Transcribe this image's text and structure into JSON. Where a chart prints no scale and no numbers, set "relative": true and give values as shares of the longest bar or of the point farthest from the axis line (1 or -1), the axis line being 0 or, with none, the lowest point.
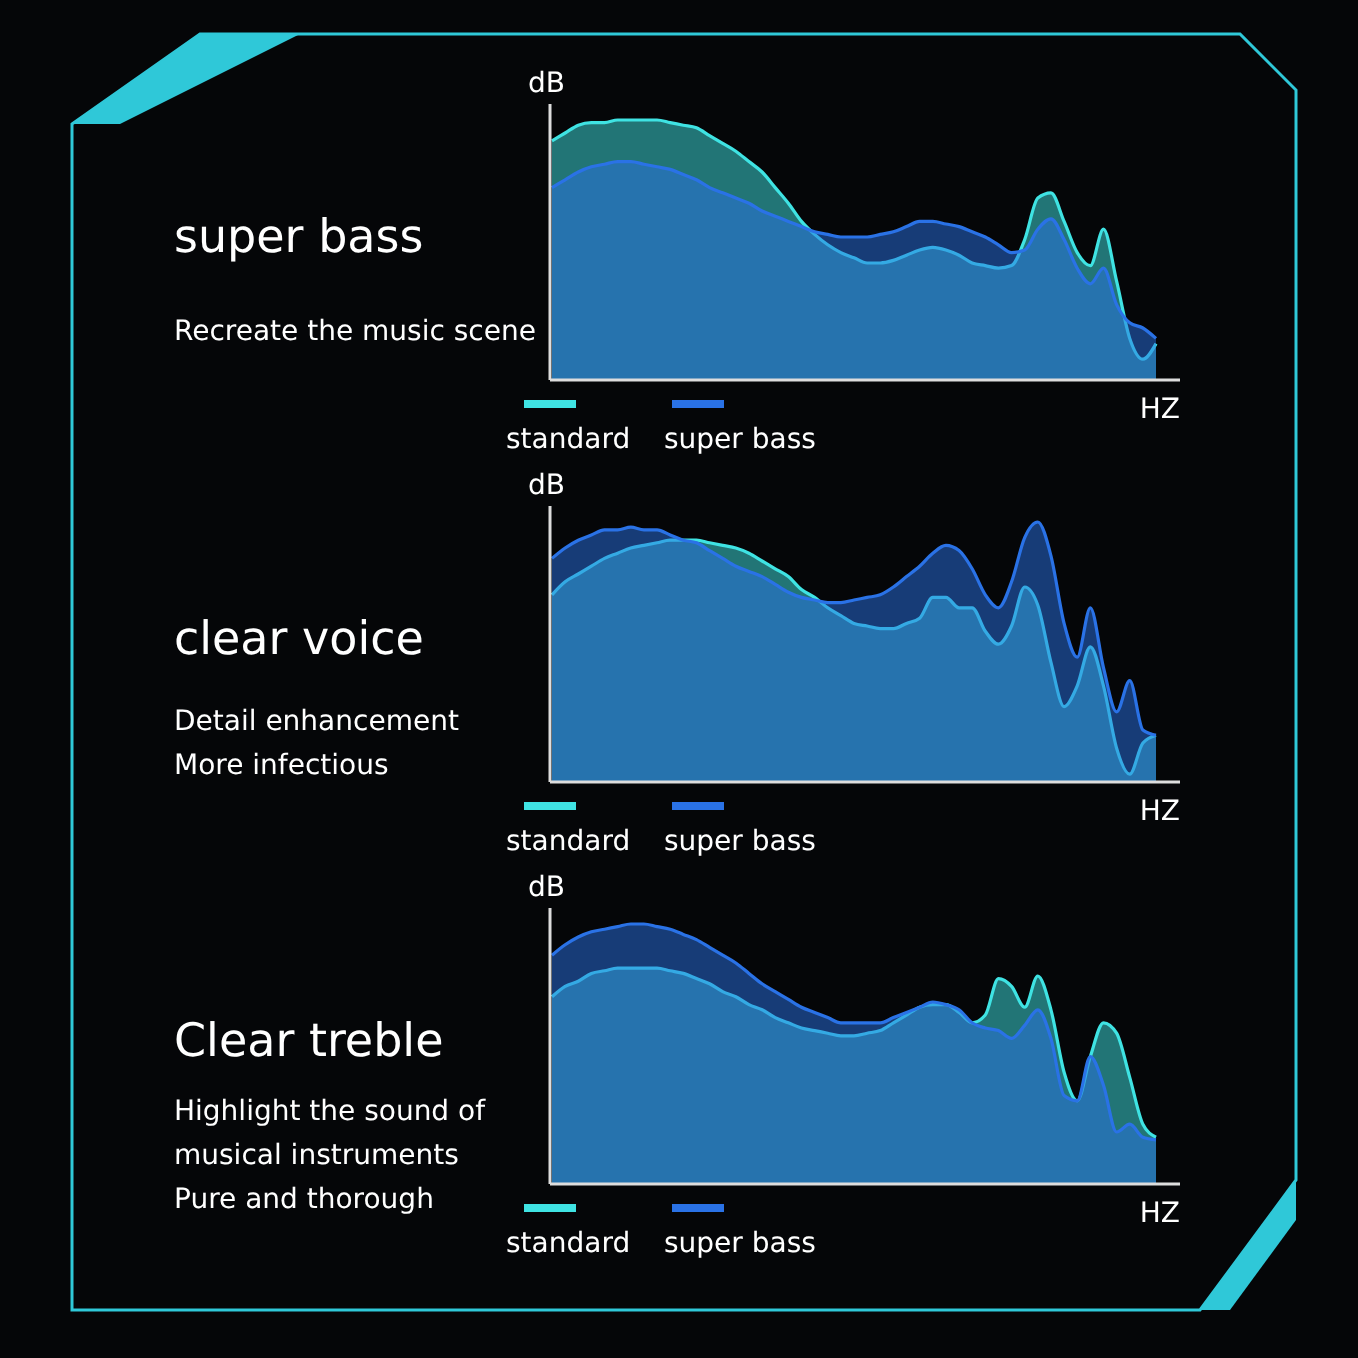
{
  "chart_data": [
    {
      "type": "area",
      "title": "super bass",
      "subtitle": "Recreate the music scene",
      "ylabel": "dB",
      "xlabel": "HZ",
      "relative": true,
      "legend": "bottom",
      "categories": [
        null,
        null,
        null,
        null,
        null,
        null,
        null,
        null,
        null,
        null,
        null,
        null,
        null,
        null,
        null,
        null,
        null,
        null,
        null,
        null,
        null,
        null,
        null,
        null,
        null,
        null,
        null,
        null,
        null,
        null,
        null,
        null,
        null,
        null,
        null,
        null,
        null,
        null,
        null,
        null,
        null,
        null,
        null,
        null,
        null,
        null,
        null
      ],
      "series": [
        {
          "name": "standard",
          "color": "#3fe3e3",
          "values": [
            0.92,
            0.95,
            0.98,
            0.99,
            0.99,
            1.0,
            1.0,
            1.0,
            1.0,
            0.99,
            0.98,
            0.97,
            0.94,
            0.91,
            0.88,
            0.84,
            0.8,
            0.74,
            0.68,
            0.61,
            0.56,
            0.52,
            0.49,
            0.47,
            0.45,
            0.45,
            0.46,
            0.48,
            0.5,
            0.51,
            0.5,
            0.48,
            0.45,
            0.44,
            0.43,
            0.44,
            0.54,
            0.7,
            0.72,
            0.61,
            0.49,
            0.44,
            0.58,
            0.38,
            0.16,
            0.08,
            0.14
          ]
        },
        {
          "name": "super bass",
          "color": "#2a72e6",
          "values": [
            0.74,
            0.77,
            0.8,
            0.82,
            0.83,
            0.84,
            0.84,
            0.83,
            0.82,
            0.81,
            0.79,
            0.77,
            0.74,
            0.72,
            0.7,
            0.68,
            0.65,
            0.63,
            0.61,
            0.59,
            0.57,
            0.56,
            0.55,
            0.55,
            0.55,
            0.56,
            0.57,
            0.59,
            0.61,
            0.61,
            0.6,
            0.59,
            0.57,
            0.55,
            0.52,
            0.49,
            0.5,
            0.58,
            0.62,
            0.54,
            0.43,
            0.37,
            0.43,
            0.29,
            0.22,
            0.2,
            0.16
          ]
        }
      ]
    },
    {
      "type": "area",
      "title": "clear voice",
      "subtitle": "Detail enhancement\nMore infectious",
      "ylabel": "dB",
      "xlabel": "HZ",
      "relative": true,
      "legend": "bottom",
      "categories": [
        null,
        null,
        null,
        null,
        null,
        null,
        null,
        null,
        null,
        null,
        null,
        null,
        null,
        null,
        null,
        null,
        null,
        null,
        null,
        null,
        null,
        null,
        null,
        null,
        null,
        null,
        null,
        null,
        null,
        null,
        null,
        null,
        null,
        null,
        null,
        null,
        null,
        null,
        null,
        null,
        null,
        null,
        null,
        null,
        null,
        null,
        null
      ],
      "series": [
        {
          "name": "standard",
          "color": "#3fe3e3",
          "values": [
            0.72,
            0.77,
            0.8,
            0.83,
            0.86,
            0.88,
            0.9,
            0.91,
            0.92,
            0.93,
            0.93,
            0.93,
            0.92,
            0.91,
            0.9,
            0.88,
            0.85,
            0.82,
            0.79,
            0.74,
            0.71,
            0.67,
            0.64,
            0.61,
            0.6,
            0.59,
            0.59,
            0.61,
            0.63,
            0.71,
            0.71,
            0.67,
            0.67,
            0.58,
            0.53,
            0.6,
            0.75,
            0.68,
            0.46,
            0.29,
            0.37,
            0.52,
            0.37,
            0.13,
            0.03,
            0.15,
            0.18
          ]
        },
        {
          "name": "super bass",
          "color": "#2a72e6",
          "values": [
            0.86,
            0.9,
            0.93,
            0.95,
            0.97,
            0.97,
            0.98,
            0.97,
            0.97,
            0.95,
            0.93,
            0.92,
            0.89,
            0.86,
            0.83,
            0.81,
            0.79,
            0.76,
            0.73,
            0.71,
            0.7,
            0.69,
            0.69,
            0.7,
            0.71,
            0.72,
            0.75,
            0.79,
            0.83,
            0.88,
            0.91,
            0.89,
            0.82,
            0.72,
            0.67,
            0.77,
            0.94,
            1.0,
            0.87,
            0.61,
            0.48,
            0.67,
            0.44,
            0.27,
            0.39,
            0.2,
            0.18
          ]
        }
      ]
    },
    {
      "type": "area",
      "title": "Clear treble",
      "subtitle": "Highlight the sound of\nmusical instruments\nPure and thorough",
      "ylabel": "dB",
      "xlabel": "HZ",
      "relative": true,
      "legend": "bottom",
      "categories": [
        null,
        null,
        null,
        null,
        null,
        null,
        null,
        null,
        null,
        null,
        null,
        null,
        null,
        null,
        null,
        null,
        null,
        null,
        null,
        null,
        null,
        null,
        null,
        null,
        null,
        null,
        null,
        null,
        null,
        null,
        null,
        null,
        null,
        null,
        null,
        null,
        null,
        null,
        null,
        null,
        null,
        null,
        null,
        null,
        null,
        null,
        null
      ],
      "series": [
        {
          "name": "standard",
          "color": "#3fe3e3",
          "values": [
            0.72,
            0.76,
            0.78,
            0.81,
            0.82,
            0.83,
            0.83,
            0.83,
            0.83,
            0.82,
            0.81,
            0.79,
            0.77,
            0.74,
            0.72,
            0.69,
            0.67,
            0.64,
            0.62,
            0.6,
            0.59,
            0.58,
            0.57,
            0.57,
            0.58,
            0.59,
            0.62,
            0.65,
            0.68,
            0.69,
            0.69,
            0.66,
            0.62,
            0.65,
            0.79,
            0.76,
            0.68,
            0.8,
            0.67,
            0.43,
            0.32,
            0.49,
            0.62,
            0.58,
            0.41,
            0.23,
            0.18
          ]
        },
        {
          "name": "super bass",
          "color": "#2a72e6",
          "values": [
            0.88,
            0.92,
            0.95,
            0.97,
            0.98,
            0.99,
            1.0,
            1.0,
            0.99,
            0.98,
            0.96,
            0.94,
            0.91,
            0.88,
            0.85,
            0.81,
            0.77,
            0.74,
            0.71,
            0.68,
            0.66,
            0.64,
            0.62,
            0.62,
            0.62,
            0.62,
            0.64,
            0.66,
            0.68,
            0.7,
            0.69,
            0.67,
            0.62,
            0.6,
            0.59,
            0.56,
            0.61,
            0.67,
            0.56,
            0.34,
            0.32,
            0.49,
            0.38,
            0.2,
            0.23,
            0.18,
            0.17
          ]
        }
      ]
    }
  ]
}
